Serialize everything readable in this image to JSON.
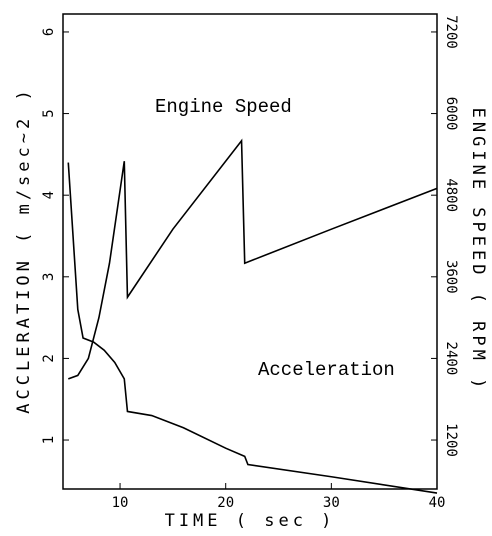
{
  "chart_data": {
    "type": "line",
    "annotations": [
      "Engine Speed",
      "Acceleration"
    ],
    "xlabel": "TIME ( sec )",
    "ylabel": "ACCLERATION ( m/sec~2 )",
    "y2label": "ENGINE SPEED ( RPM )",
    "xlim": [
      4.6,
      40
    ],
    "xticks": [
      10,
      20,
      30,
      40
    ],
    "ylim": [
      0.4,
      6.22
    ],
    "yticks": [
      1,
      2,
      3,
      4,
      5,
      6
    ],
    "y2lim": [
      480,
      7464
    ],
    "y2ticks": [
      1200,
      2400,
      3600,
      4800,
      6000,
      7200
    ],
    "series": [
      {
        "name": "Engine Speed",
        "color": "#000000",
        "axis": "y2",
        "x": [
          5.1,
          6,
          7,
          8,
          9,
          10.4,
          10.7,
          15,
          21.5,
          21.8,
          30,
          40
        ],
        "values": [
          2100,
          2150,
          2400,
          3000,
          3800,
          5300,
          3300,
          4300,
          5600,
          3800,
          4300,
          4900
        ]
      },
      {
        "name": "Acceleration",
        "color": "#000000",
        "x": [
          5.1,
          5.5,
          6,
          6.5,
          7.5,
          8.5,
          9.5,
          10.4,
          10.7,
          13,
          16,
          20,
          21.8,
          22.1,
          30,
          40
        ],
        "values": [
          4.4,
          3.6,
          2.6,
          2.25,
          2.2,
          2.1,
          1.95,
          1.75,
          1.35,
          1.3,
          1.15,
          0.9,
          0.8,
          0.7,
          0.55,
          0.35
        ]
      }
    ]
  }
}
